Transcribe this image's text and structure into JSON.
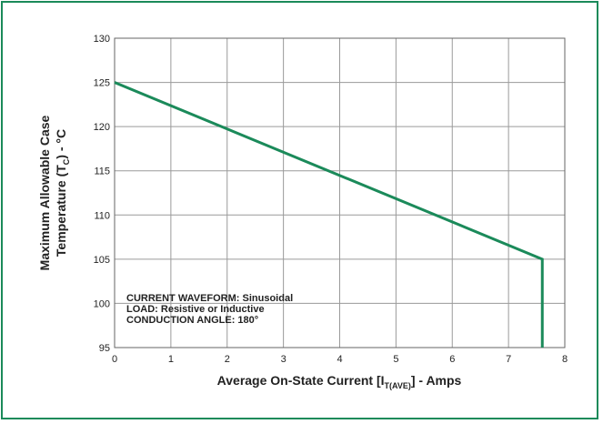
{
  "chart_data": {
    "type": "line",
    "xlabel": {
      "main": "Average On-State Current [I",
      "sub": "T(AVE)",
      "tail": "] - Amps"
    },
    "ylabel": {
      "line1": "Maximum Allowable Case",
      "line2_main": "Temperature (T",
      "line2_sub": "C",
      "line2_tail": ") - °C"
    },
    "xlim": [
      0,
      8
    ],
    "ylim": [
      95,
      130
    ],
    "xticks": [
      0,
      1,
      2,
      3,
      4,
      5,
      6,
      7,
      8
    ],
    "yticks": [
      95,
      100,
      105,
      110,
      115,
      120,
      125,
      130
    ],
    "grid": true,
    "series": [
      {
        "x": [
          0,
          7.6,
          7.6
        ],
        "y": [
          125,
          105,
          95
        ],
        "color": "#1b8a5a"
      }
    ],
    "annotations": [
      "CURRENT WAVEFORM: Sinusoidal",
      "LOAD: Resistive or Inductive",
      "CONDUCTION ANGLE: 180°"
    ]
  },
  "colors": {
    "frame": "#1b8a5a",
    "series": "#1b8a5a",
    "grid": "#9a9a9a"
  }
}
